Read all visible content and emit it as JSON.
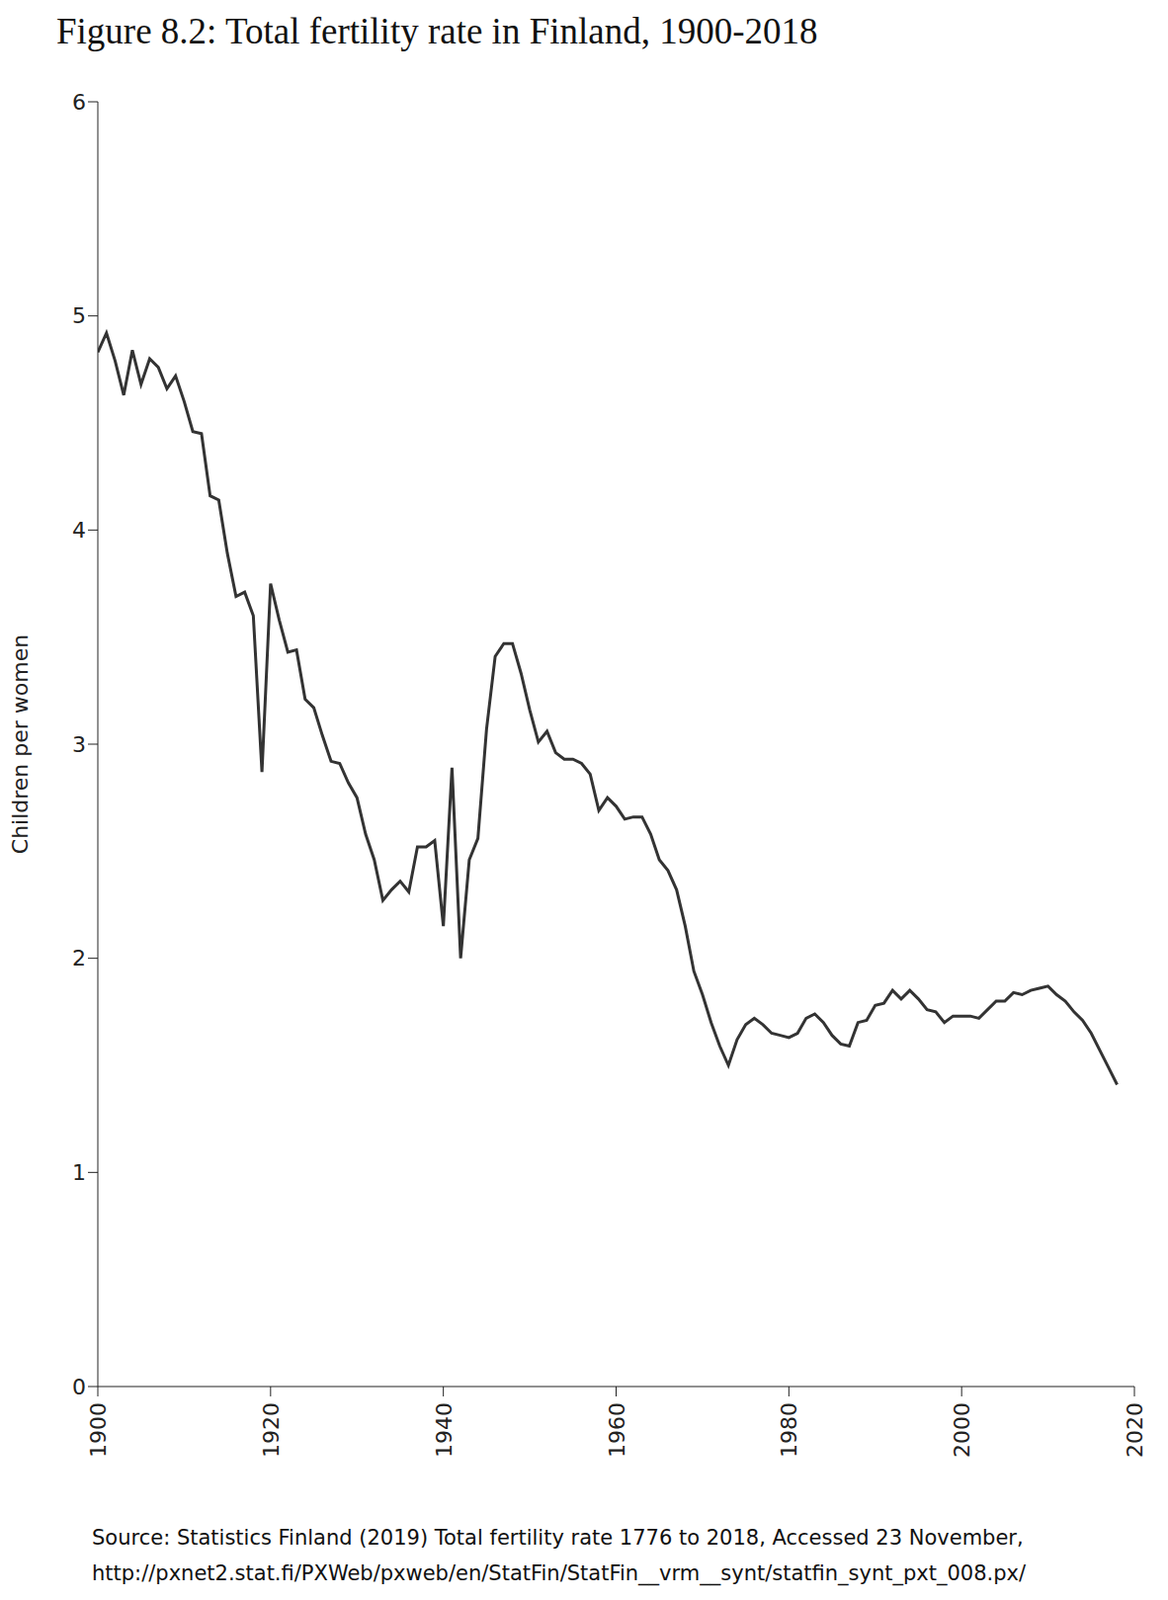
{
  "chart_data": {
    "type": "line",
    "title": "Figure 8.2: Total fertility rate in Finland, 1900-2018",
    "y_label": "Children per women",
    "source": [
      "Source: Statistics Finland (2019) Total fertility rate 1776 to 2018, Accessed 23 November,",
      "http://pxnet2.stat.fi/PXWeb/pxweb/en/StatFin/StatFin__vrm__synt/statfin_synt_pxt_008.px/"
    ],
    "x": [
      1900,
      1901,
      1902,
      1903,
      1904,
      1905,
      1906,
      1907,
      1908,
      1909,
      1910,
      1911,
      1912,
      1913,
      1914,
      1915,
      1916,
      1917,
      1918,
      1919,
      1920,
      1921,
      1922,
      1923,
      1924,
      1925,
      1926,
      1927,
      1928,
      1929,
      1930,
      1931,
      1932,
      1933,
      1934,
      1935,
      1936,
      1937,
      1938,
      1939,
      1940,
      1941,
      1942,
      1943,
      1944,
      1945,
      1946,
      1947,
      1948,
      1949,
      1950,
      1951,
      1952,
      1953,
      1954,
      1955,
      1956,
      1957,
      1958,
      1959,
      1960,
      1961,
      1962,
      1963,
      1964,
      1965,
      1966,
      1967,
      1968,
      1969,
      1970,
      1971,
      1972,
      1973,
      1974,
      1975,
      1976,
      1977,
      1978,
      1979,
      1980,
      1981,
      1982,
      1983,
      1984,
      1985,
      1986,
      1987,
      1988,
      1989,
      1990,
      1991,
      1992,
      1993,
      1994,
      1995,
      1996,
      1997,
      1998,
      1999,
      2000,
      2001,
      2002,
      2003,
      2004,
      2005,
      2006,
      2007,
      2008,
      2009,
      2010,
      2011,
      2012,
      2013,
      2014,
      2015,
      2016,
      2017,
      2018
    ],
    "values": [
      4.83,
      4.92,
      4.79,
      4.63,
      4.84,
      4.68,
      4.8,
      4.76,
      4.66,
      4.72,
      4.6,
      4.46,
      4.45,
      4.16,
      4.14,
      3.89,
      3.69,
      3.71,
      3.6,
      2.87,
      3.75,
      3.58,
      3.43,
      3.44,
      3.21,
      3.17,
      3.04,
      2.92,
      2.91,
      2.82,
      2.75,
      2.58,
      2.46,
      2.27,
      2.32,
      2.36,
      2.31,
      2.52,
      2.52,
      2.55,
      2.15,
      2.89,
      2.0,
      2.46,
      2.56,
      3.07,
      3.41,
      3.47,
      3.47,
      3.33,
      3.16,
      3.01,
      3.06,
      2.96,
      2.93,
      2.93,
      2.91,
      2.86,
      2.69,
      2.75,
      2.71,
      2.65,
      2.66,
      2.66,
      2.58,
      2.46,
      2.41,
      2.32,
      2.15,
      1.94,
      1.83,
      1.7,
      1.59,
      1.5,
      1.62,
      1.69,
      1.72,
      1.69,
      1.65,
      1.64,
      1.63,
      1.65,
      1.72,
      1.74,
      1.7,
      1.64,
      1.6,
      1.59,
      1.7,
      1.71,
      1.78,
      1.79,
      1.85,
      1.81,
      1.85,
      1.81,
      1.76,
      1.75,
      1.7,
      1.73,
      1.73,
      1.73,
      1.72,
      1.76,
      1.8,
      1.8,
      1.84,
      1.83,
      1.85,
      1.86,
      1.87,
      1.83,
      1.8,
      1.75,
      1.71,
      1.65,
      1.57,
      1.49,
      1.41
    ],
    "color": "#333333",
    "xlim": [
      1900,
      2020
    ],
    "xticks": [
      1900,
      1920,
      1940,
      1960,
      1980,
      2000,
      2020
    ],
    "ylim": [
      0,
      6
    ],
    "yticks": [
      0,
      1,
      2,
      3,
      4,
      5,
      6
    ],
    "grid": false
  }
}
